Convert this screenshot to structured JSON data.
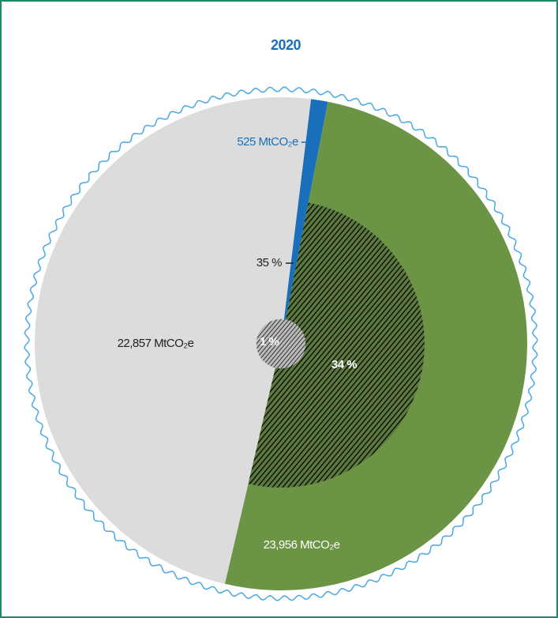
{
  "chart_data": {
    "type": "pie",
    "title": "2020",
    "values": [
      525,
      23956,
      22857
    ],
    "value_labels": [
      "525 MtCO₂e",
      "23,956 MtCO₂e",
      "22,857 MtCO₂e"
    ],
    "colors": [
      "#1a6fba",
      "#6b9444",
      "#dcdcdc"
    ],
    "overlay": {
      "values": [
        35,
        34,
        1
      ],
      "value_labels": [
        "35 %",
        "34 %",
        "1 %"
      ]
    }
  }
}
